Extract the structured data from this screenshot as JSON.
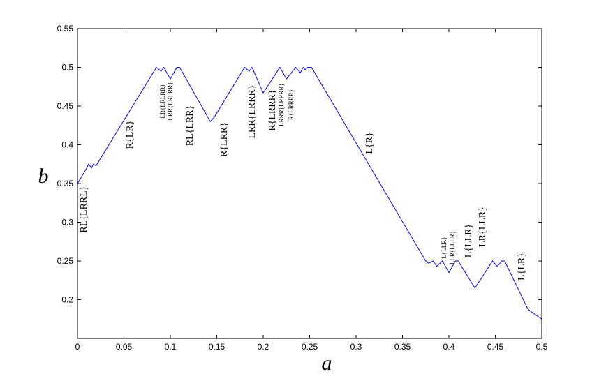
{
  "chart_data": {
    "type": "line",
    "x_label": "a",
    "y_label": "b",
    "x": [
      0,
      0.01,
      0.012,
      0.015,
      0.017,
      0.02,
      0.085,
      0.09,
      0.093,
      0.1,
      0.107,
      0.11,
      0.143,
      0.147,
      0.18,
      0.185,
      0.188,
      0.2,
      0.218,
      0.225,
      0.235,
      0.24,
      0.243,
      0.245,
      0.248,
      0.252,
      0.375,
      0.378,
      0.383,
      0.387,
      0.393,
      0.4,
      0.407,
      0.41,
      0.428,
      0.447,
      0.452,
      0.457,
      0.46,
      0.485,
      0.488,
      0.5
    ],
    "series": [
      {
        "color": "#0000ff",
        "values": [
          0.35,
          0.37,
          0.375,
          0.37,
          0.375,
          0.373,
          0.5,
          0.495,
          0.5,
          0.485,
          0.5,
          0.5,
          0.43,
          0.435,
          0.5,
          0.495,
          0.5,
          0.467,
          0.5,
          0.485,
          0.5,
          0.493,
          0.5,
          0.497,
          0.5,
          0.5,
          0.25,
          0.247,
          0.25,
          0.243,
          0.25,
          0.235,
          0.25,
          0.25,
          0.215,
          0.25,
          0.243,
          0.25,
          0.25,
          0.188,
          0.185,
          0.175
        ]
      }
    ],
    "xlim": [
      0,
      0.5
    ],
    "ylim": [
      0.15,
      0.55
    ],
    "xticks": [
      0,
      0.05,
      0.1,
      0.15,
      0.2,
      0.25,
      0.3,
      0.35,
      0.4,
      0.45,
      0.5
    ],
    "yticks": [
      0.2,
      0.25,
      0.3,
      0.35,
      0.4,
      0.45,
      0.5,
      0.55
    ],
    "annotations": [
      "RL{LRRL}",
      "R{LR}",
      "LR{LRLRR}",
      "LRR{LRLRR}",
      "RL{LRR}",
      "R{LRR}",
      "LRR{LRRR}",
      "R{LRRR}",
      "LRRR{LRRRR}",
      "R{LRRRR}",
      "L{R}",
      "L{LLR}",
      "LLR{LLLR}",
      "L{LLR}",
      "LR{LLR}",
      "L{LR}"
    ]
  }
}
